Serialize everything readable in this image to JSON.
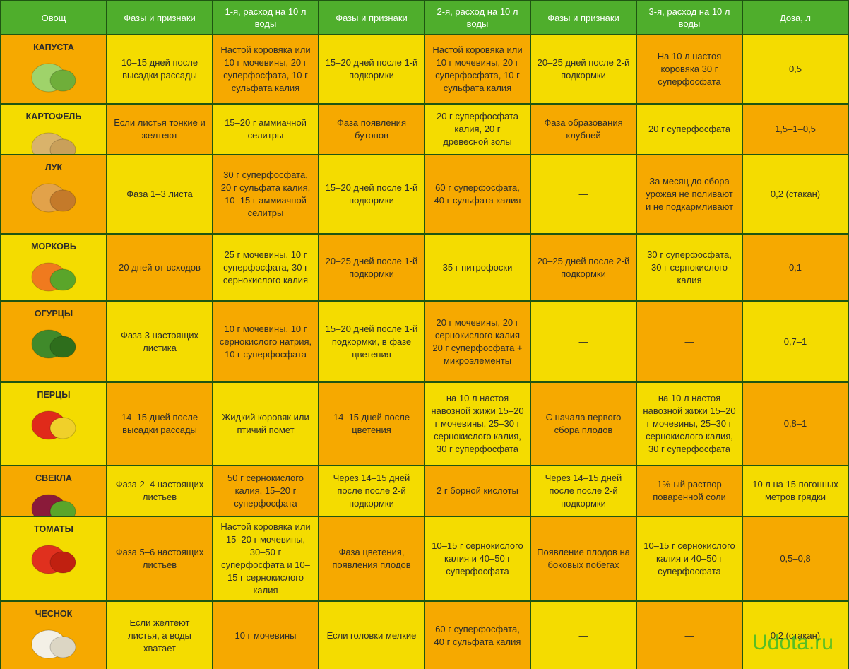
{
  "table": {
    "header": [
      "Овощ",
      "Фазы и признаки",
      "1-я, расход на 10 л воды",
      "Фазы и признаки",
      "2-я, расход на 10 л воды",
      "Фазы и признаки",
      "3-я, расход на 10 л воды",
      "Доза, л"
    ],
    "rows": [
      [
        "КАПУСТА",
        "10–15 дней после высадки рассады",
        "Настой коровяка или 10 г мочевины, 20 г суперфосфата, 10 г сульфата калия",
        "15–20 дней после 1-й подкормки",
        "Настой коровяка или 10 г мочевины, 20 г суперфосфата, 10 г сульфата калия",
        "20–25 дней после 2-й подкормки",
        "На 10 л настоя коровяка 30 г суперфосфата",
        "0,5"
      ],
      [
        "КАРТОФЕЛЬ",
        "Если листья тонкие и желтеют",
        "15–20 г аммиачной селитры",
        "Фаза появления бутонов",
        "20 г суперфосфата калия, 20 г древесной золы",
        "Фаза образования клубней",
        "20 г суперфосфата",
        "1,5–1–0,5"
      ],
      [
        "ЛУК",
        "Фаза 1–3 листа",
        "30 г суперфосфата, 20 г сульфата калия, 10–15 г аммиачной селитры",
        "15–20 дней после 1-й подкормки",
        "60 г суперфосфата, 40 г сульфата калия",
        "—",
        "За месяц до сбора урожая не поливают и не подкармливают",
        "0,2 (стакан)"
      ],
      [
        "МОРКОВЬ",
        "20 дней от всходов",
        "25 г мочевины, 10 г суперфосфата, 30 г сернокислого калия",
        "20–25 дней после 1-й подкормки",
        "35 г нитрофоски",
        "20–25 дней после 2-й подкормки",
        "30 г суперфосфата, 30 г сернокислого калия",
        "0,1"
      ],
      [
        "ОГУРЦЫ",
        "Фаза 3 настоящих листика",
        "10 г мочевины, 10 г сернокислого натрия, 10 г суперфосфата",
        "15–20 дней после 1-й подкормки, в фазе цветения",
        "20 г мочевины, 20 г сернокислого калия 20 г суперфосфата + микроэлементы",
        "—",
        "—",
        "0,7–1"
      ],
      [
        "ПЕРЦЫ",
        "14–15 дней после высадки рассады",
        "Жидкий коровяк или птичий помет",
        "14–15 дней после цветения",
        "на 10 л настоя навозной жижи 15–20 г мочевины, 25–30 г сернокислого калия, 30 г суперфосфата",
        "С начала первого сбора плодов",
        "на 10 л настоя навозной жижи 15–20 г мочевины, 25–30 г сернокислого калия, 30 г суперфосфата",
        "0,8–1"
      ],
      [
        "СВЕКЛА",
        "Фаза 2–4 настоящих листьев",
        "50 г сернокислого калия, 15–20 г суперфосфата",
        "Через 14–15 дней после после 2-й подкормки",
        "2 г борной кислоты",
        "Через 14–15 дней после после 2-й подкормки",
        "1%-ый раствор поваренной соли",
        "10 л на 15 погонных метров грядки"
      ],
      [
        "ТОМАТЫ",
        "Фаза 5–6 настоящих листьев",
        "Настой коровяка или 15–20 г мочевины, 30–50 г суперфосфата и 10–15 г сернокислого калия",
        "Фаза цветения, появления плодов",
        "10–15 г сернокислого калия и 40–50 г суперфосфата",
        "Появление плодов на боковых побегах",
        "10–15 г сернокислого калия и 40–50 г суперфосфата",
        "0,5–0,8"
      ],
      [
        "ЧЕСНОК",
        "Если желтеют листья, а воды хватает",
        "10 г мочевины",
        "Если головки мелкие",
        "60 г суперфосфата, 40 г сульфата калия",
        "—",
        "—",
        "0,2 (стакан)"
      ]
    ]
  },
  "watermark": "Udota.ru"
}
